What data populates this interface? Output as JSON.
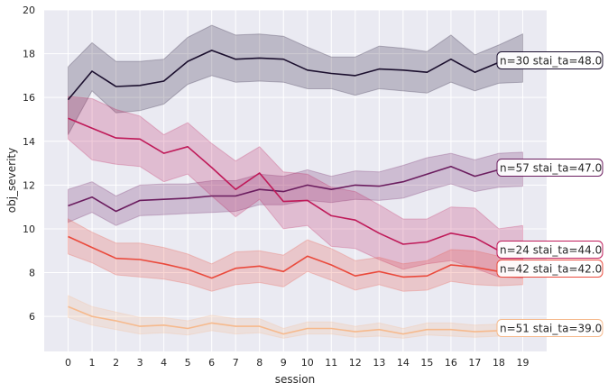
{
  "chart_data": {
    "type": "line",
    "xlabel": "session",
    "ylabel": "obj_severity",
    "xlim": [
      -1,
      20
    ],
    "ylim": [
      4.4,
      20
    ],
    "x_ticks": [
      0,
      1,
      2,
      3,
      4,
      5,
      6,
      7,
      8,
      9,
      10,
      11,
      12,
      13,
      14,
      15,
      16,
      17,
      18,
      19
    ],
    "y_ticks": [
      6,
      8,
      10,
      12,
      14,
      16,
      18,
      20
    ],
    "grid": true,
    "background": "#eaeaf2",
    "x": [
      0,
      1,
      2,
      3,
      4,
      5,
      6,
      7,
      8,
      9,
      10,
      11,
      12,
      13,
      14,
      15,
      16,
      17,
      18,
      19
    ],
    "series": [
      {
        "label": "n=30 stai_ta=48.0",
        "color": "#1b0f2e",
        "values": [
          15.9,
          17.2,
          16.5,
          16.55,
          16.75,
          17.65,
          18.15,
          17.75,
          17.8,
          17.75,
          17.25,
          17.1,
          17.0,
          17.3,
          17.25,
          17.15,
          17.75,
          17.15,
          17.6,
          null
        ],
        "lower": [
          14.3,
          16.3,
          15.3,
          15.4,
          15.7,
          16.6,
          17.0,
          16.7,
          16.75,
          16.7,
          16.4,
          16.4,
          16.1,
          16.4,
          16.3,
          16.2,
          16.7,
          16.3,
          16.65,
          16.7
        ],
        "upper": [
          17.4,
          18.5,
          17.65,
          17.65,
          17.75,
          18.75,
          19.3,
          18.85,
          18.9,
          18.8,
          18.3,
          17.85,
          17.85,
          18.35,
          18.25,
          18.1,
          18.85,
          17.95,
          18.4,
          18.9
        ]
      },
      {
        "label": "n=57 stai_ta=47.0",
        "color": "#6b1d5f",
        "values": [
          11.05,
          11.45,
          10.8,
          11.3,
          11.35,
          11.4,
          11.5,
          11.5,
          11.8,
          11.7,
          12.0,
          11.8,
          12.0,
          11.95,
          12.15,
          12.5,
          12.85,
          12.4,
          12.7,
          null
        ],
        "lower": [
          10.3,
          10.75,
          10.15,
          10.6,
          10.65,
          10.7,
          10.75,
          10.8,
          11.1,
          11.1,
          11.3,
          11.2,
          11.35,
          11.3,
          11.4,
          11.75,
          12.05,
          11.7,
          11.9,
          11.95
        ],
        "upper": [
          11.8,
          12.15,
          11.5,
          12.0,
          12.05,
          12.05,
          12.2,
          12.2,
          12.5,
          12.4,
          12.7,
          12.4,
          12.65,
          12.6,
          12.9,
          13.25,
          13.45,
          13.15,
          13.45,
          13.5
        ]
      },
      {
        "label": "n=24 stai_ta=44.0",
        "color": "#bf1a59",
        "values": [
          15.05,
          14.6,
          14.15,
          14.1,
          13.45,
          13.75,
          12.8,
          11.8,
          12.55,
          11.25,
          11.3,
          10.6,
          10.4,
          9.8,
          9.3,
          9.4,
          9.8,
          9.6,
          9.0,
          null
        ],
        "lower": [
          14.1,
          13.15,
          12.95,
          12.85,
          12.15,
          12.5,
          11.5,
          10.55,
          11.35,
          10.0,
          10.15,
          9.2,
          9.1,
          8.6,
          8.15,
          8.4,
          8.55,
          8.2,
          7.8,
          7.75
        ],
        "upper": [
          16.05,
          15.95,
          15.45,
          15.15,
          14.3,
          14.85,
          13.9,
          13.1,
          13.75,
          12.6,
          12.5,
          11.9,
          11.7,
          11.1,
          10.45,
          10.45,
          11.0,
          10.95,
          10.0,
          10.15
        ]
      },
      {
        "label": "n=42 stai_ta=42.0",
        "color": "#ea4a3c",
        "values": [
          9.65,
          9.15,
          8.65,
          8.6,
          8.4,
          8.15,
          7.75,
          8.2,
          8.3,
          8.05,
          8.75,
          8.35,
          7.85,
          8.05,
          7.8,
          7.85,
          8.35,
          8.25,
          8.05,
          null
        ],
        "lower": [
          8.85,
          8.45,
          7.9,
          7.8,
          7.7,
          7.5,
          7.15,
          7.45,
          7.55,
          7.35,
          8.05,
          7.65,
          7.2,
          7.45,
          7.15,
          7.2,
          7.6,
          7.45,
          7.4,
          7.45
        ],
        "upper": [
          10.45,
          9.85,
          9.35,
          9.35,
          9.15,
          8.85,
          8.4,
          8.95,
          9.0,
          8.8,
          9.5,
          9.1,
          8.55,
          8.7,
          8.4,
          8.55,
          9.05,
          9.0,
          8.75,
          8.8
        ]
      },
      {
        "label": "n=51 stai_ta=39.0",
        "color": "#f6b98c",
        "values": [
          6.45,
          6.0,
          5.8,
          5.55,
          5.6,
          5.45,
          5.7,
          5.55,
          5.55,
          5.2,
          5.45,
          5.45,
          5.3,
          5.4,
          5.2,
          5.4,
          5.4,
          5.3,
          5.35,
          null
        ],
        "lower": [
          5.95,
          5.6,
          5.4,
          5.2,
          5.25,
          5.15,
          5.35,
          5.2,
          5.25,
          5.0,
          5.2,
          5.2,
          5.05,
          5.1,
          5.0,
          5.15,
          5.1,
          5.05,
          5.1,
          5.1
        ],
        "upper": [
          6.95,
          6.45,
          6.2,
          5.95,
          5.95,
          5.8,
          6.05,
          5.9,
          5.9,
          5.45,
          5.75,
          5.75,
          5.55,
          5.7,
          5.45,
          5.7,
          5.7,
          5.6,
          5.65,
          5.65
        ]
      }
    ]
  }
}
